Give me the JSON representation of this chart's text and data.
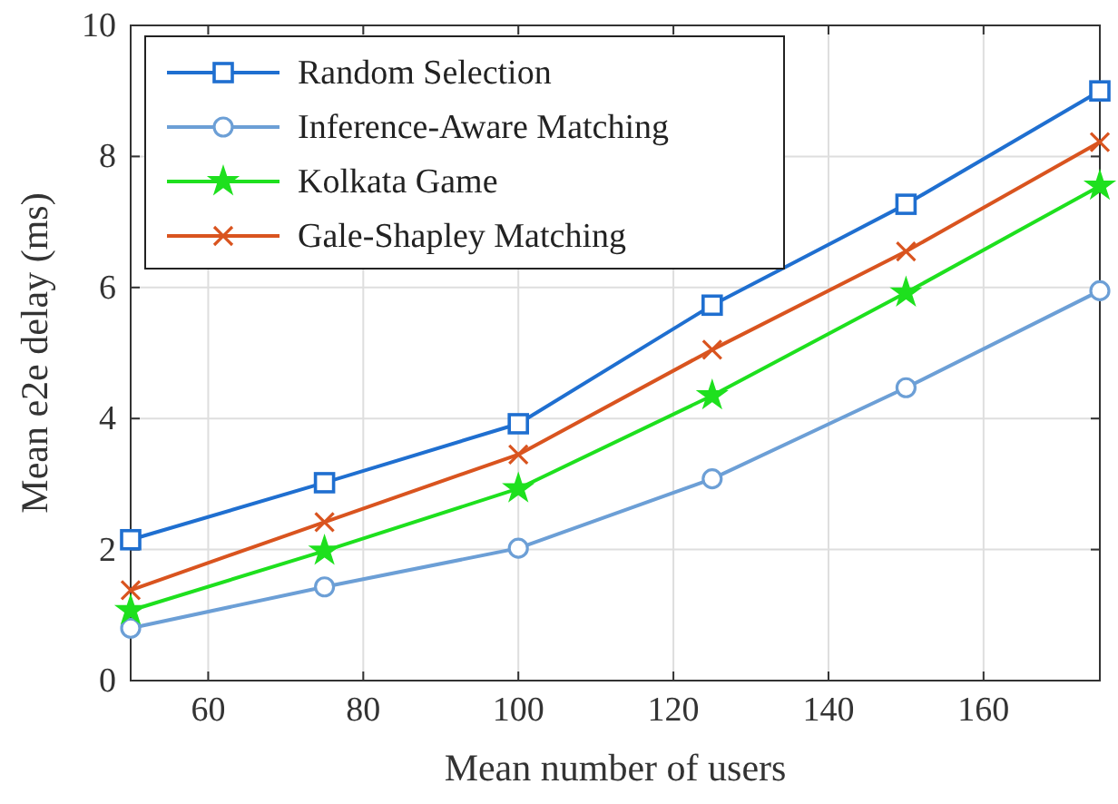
{
  "chart_data": {
    "type": "line",
    "xlabel": "Mean number of users",
    "ylabel": "Mean e2e delay (ms)",
    "x": [
      50,
      75,
      100,
      125,
      150,
      175
    ],
    "xlim": [
      50,
      175
    ],
    "xticks": [
      60,
      80,
      100,
      120,
      140,
      160
    ],
    "ylim": [
      0,
      10
    ],
    "yticks": [
      0,
      2,
      4,
      6,
      8,
      10
    ],
    "grid": true,
    "legend": "top left",
    "line_style": "solid",
    "series": [
      {
        "name": "Random Selection",
        "color": "#1f6fd0",
        "marker": "square",
        "values": [
          2.15,
          3.02,
          3.92,
          5.73,
          7.27,
          9.0
        ]
      },
      {
        "name": "Inference-Aware Matching",
        "color": "#6c9fd6",
        "marker": "circle",
        "values": [
          0.8,
          1.43,
          2.02,
          3.08,
          4.47,
          5.95
        ]
      },
      {
        "name": "Kolkata Game",
        "color": "#1ee01e",
        "marker": "star",
        "values": [
          1.07,
          1.98,
          2.93,
          4.35,
          5.92,
          7.55
        ]
      },
      {
        "name": "Gale-Shapley Matching",
        "color": "#d9541f",
        "marker": "cross",
        "values": [
          1.38,
          2.42,
          3.45,
          5.05,
          6.55,
          8.22
        ]
      }
    ]
  }
}
